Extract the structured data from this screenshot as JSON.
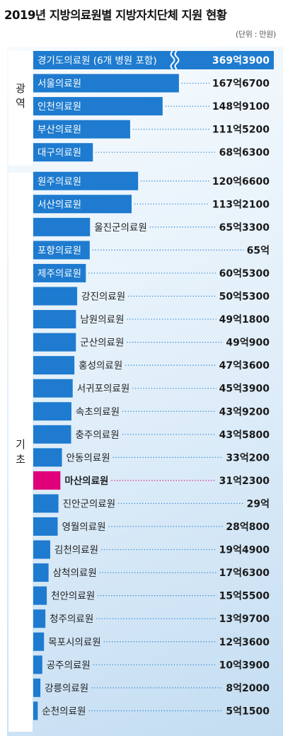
{
  "chart_data": {
    "type": "bar",
    "orientation": "horizontal",
    "title": "2019년 지방의료원별 지방자치단체 지원 현황",
    "unit": "(단위 : 만원)",
    "colors": {
      "bar": "#1e7bcf",
      "highlight": "#e0007a",
      "dots": "#1e7bcf",
      "highlight_dots": "#e0007a",
      "group_box": "#ffffff"
    },
    "axis_break_on": "경기도의료원 (6개 병원 포함)",
    "highlight": "마산의료원",
    "groups": [
      {
        "name": "광역",
        "label": "광\n역"
      },
      {
        "name": "기초",
        "label": "기\n초"
      }
    ],
    "categories": [
      "경기도의료원 (6개 병원 포함)",
      "서울의료원",
      "인천의료원",
      "부산의료원",
      "대구의료원",
      "원주의료원",
      "서산의료원",
      "울진군의료원",
      "포항의료원",
      "제주의료원",
      "강진의료원",
      "남원의료원",
      "군산의료원",
      "홍성의료원",
      "서귀포의료원",
      "속초의료원",
      "충주의료원",
      "안동의료원",
      "마산의료원",
      "진안군의료원",
      "영월의료원",
      "김천의료원",
      "삼척의료원",
      "천안의료원",
      "청주의료원",
      "목포시의료원",
      "공주의료원",
      "강릉의료원",
      "순천의료원"
    ],
    "group_of": [
      "광역",
      "광역",
      "광역",
      "광역",
      "광역",
      "기초",
      "기초",
      "기초",
      "기초",
      "기초",
      "기초",
      "기초",
      "기초",
      "기초",
      "기초",
      "기초",
      "기초",
      "기초",
      "기초",
      "기초",
      "기초",
      "기초",
      "기초",
      "기초",
      "기초",
      "기초",
      "기초",
      "기초",
      "기초"
    ],
    "values": [
      3693900,
      1676700,
      1489100,
      1115200,
      686300,
      1206600,
      1132100,
      653300,
      650000,
      605300,
      505300,
      491800,
      490900,
      473600,
      453900,
      439200,
      435800,
      330200,
      312300,
      290000,
      280800,
      194900,
      176300,
      155500,
      139700,
      123600,
      103900,
      82000,
      51500
    ],
    "value_labels": [
      "369억3900",
      "167억6700",
      "148억9100",
      "111억5200",
      "68억6300",
      "120억6600",
      "113억2100",
      "65억3300",
      "65억",
      "60억5300",
      "50억5300",
      "49억1800",
      "49억900",
      "47억3600",
      "45억3900",
      "43억9200",
      "43억5800",
      "33억200",
      "31억2300",
      "29억",
      "28억800",
      "19억4900",
      "17억6300",
      "15억5500",
      "13억9700",
      "12억3600",
      "10억3900",
      "8억2000",
      "5억1500"
    ]
  }
}
